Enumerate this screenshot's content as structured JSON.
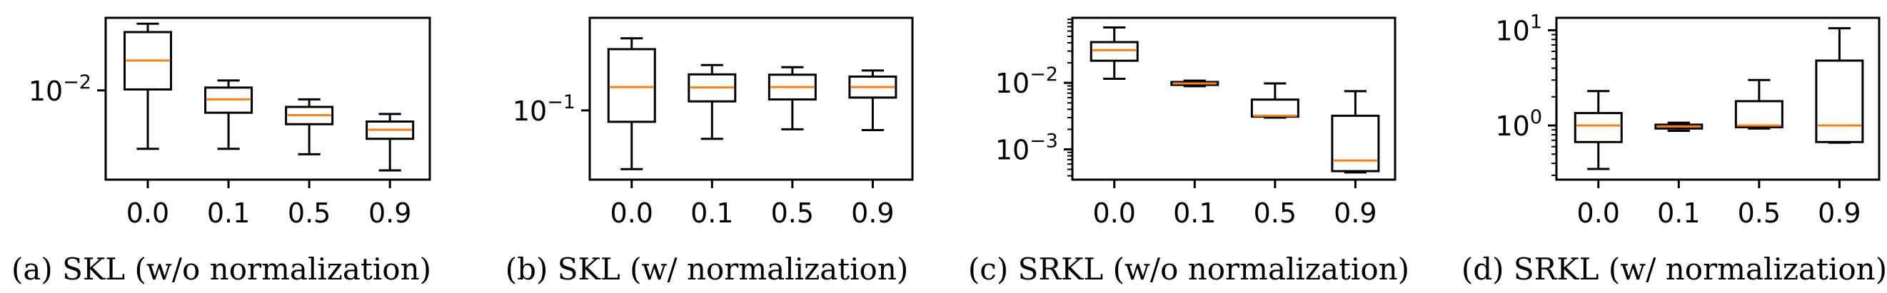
{
  "chart_data": [
    {
      "type": "box",
      "caption": "(a) SKL (w/o normalization)",
      "categories": [
        "0.0",
        "0.1",
        "0.5",
        "0.9"
      ],
      "y_scale": "log",
      "ylim": [
        0.0039,
        0.0215
      ],
      "y_ticks": [
        {
          "value": 0.01,
          "base": "10",
          "exp": "−2"
        }
      ],
      "boxes": [
        {
          "whislo": 0.0054,
          "q1": 0.0101,
          "med": 0.0137,
          "q3": 0.0185,
          "whishi": 0.0202
        },
        {
          "whislo": 0.0054,
          "q1": 0.0079,
          "med": 0.0091,
          "q3": 0.0103,
          "whishi": 0.0111
        },
        {
          "whislo": 0.0051,
          "q1": 0.007,
          "med": 0.0077,
          "q3": 0.0084,
          "whishi": 0.0091
        },
        {
          "whislo": 0.0043,
          "q1": 0.006,
          "med": 0.0066,
          "q3": 0.0072,
          "whishi": 0.0078
        }
      ]
    },
    {
      "type": "box",
      "caption": "(b) SKL (w/ normalization)",
      "categories": [
        "0.0",
        "0.1",
        "0.5",
        "0.9"
      ],
      "y_scale": "log",
      "ylim": [
        0.03,
        0.5
      ],
      "y_ticks": [
        {
          "value": 0.1,
          "base": "10",
          "exp": "−1"
        }
      ],
      "boxes": [
        {
          "whislo": 0.036,
          "q1": 0.082,
          "med": 0.15,
          "q3": 0.29,
          "whishi": 0.35
        },
        {
          "whislo": 0.061,
          "q1": 0.117,
          "med": 0.149,
          "q3": 0.187,
          "whishi": 0.22
        },
        {
          "whislo": 0.072,
          "q1": 0.121,
          "med": 0.15,
          "q3": 0.186,
          "whishi": 0.212
        },
        {
          "whislo": 0.071,
          "q1": 0.125,
          "med": 0.15,
          "q3": 0.18,
          "whishi": 0.2
        }
      ]
    },
    {
      "type": "box",
      "caption": "(c) SRKL (w/o normalization)",
      "categories": [
        "0.0",
        "0.1",
        "0.5",
        "0.9"
      ],
      "y_scale": "log",
      "ylim": [
        0.00035,
        0.095
      ],
      "y_ticks": [
        {
          "value": 0.01,
          "base": "10",
          "exp": "−2"
        },
        {
          "value": 0.001,
          "base": "10",
          "exp": "−3"
        }
      ],
      "minor_ticks": true,
      "boxes": [
        {
          "whislo": 0.0115,
          "q1": 0.0215,
          "med": 0.031,
          "q3": 0.041,
          "whishi": 0.068
        },
        {
          "whislo": 0.0089,
          "q1": 0.0093,
          "med": 0.0098,
          "q3": 0.0103,
          "whishi": 0.0108
        },
        {
          "whislo": 0.003,
          "q1": 0.0031,
          "med": 0.0032,
          "q3": 0.0056,
          "whishi": 0.0098
        },
        {
          "whislo": 0.00045,
          "q1": 0.00047,
          "med": 0.00068,
          "q3": 0.0032,
          "whishi": 0.0075
        }
      ]
    },
    {
      "type": "box",
      "caption": "(d) SRKL (w/ normalization)",
      "categories": [
        "0.0",
        "0.1",
        "0.5",
        "0.9"
      ],
      "y_scale": "log",
      "ylim": [
        0.27,
        13.5
      ],
      "y_ticks": [
        {
          "value": 10,
          "base": "10",
          "exp": "1"
        },
        {
          "value": 1,
          "base": "10",
          "exp": "0"
        }
      ],
      "minor_ticks": true,
      "boxes": [
        {
          "whislo": 0.35,
          "q1": 0.67,
          "med": 1.0,
          "q3": 1.35,
          "whishi": 2.3
        },
        {
          "whislo": 0.88,
          "q1": 0.93,
          "med": 0.98,
          "q3": 1.02,
          "whishi": 1.07
        },
        {
          "whislo": 0.93,
          "q1": 0.96,
          "med": 1.0,
          "q3": 1.8,
          "whishi": 3.0
        },
        {
          "whislo": 0.66,
          "q1": 0.67,
          "med": 1.0,
          "q3": 4.8,
          "whishi": 10.5
        }
      ]
    }
  ],
  "colors": {
    "box": "#000000",
    "median": "#ff7f0e"
  }
}
